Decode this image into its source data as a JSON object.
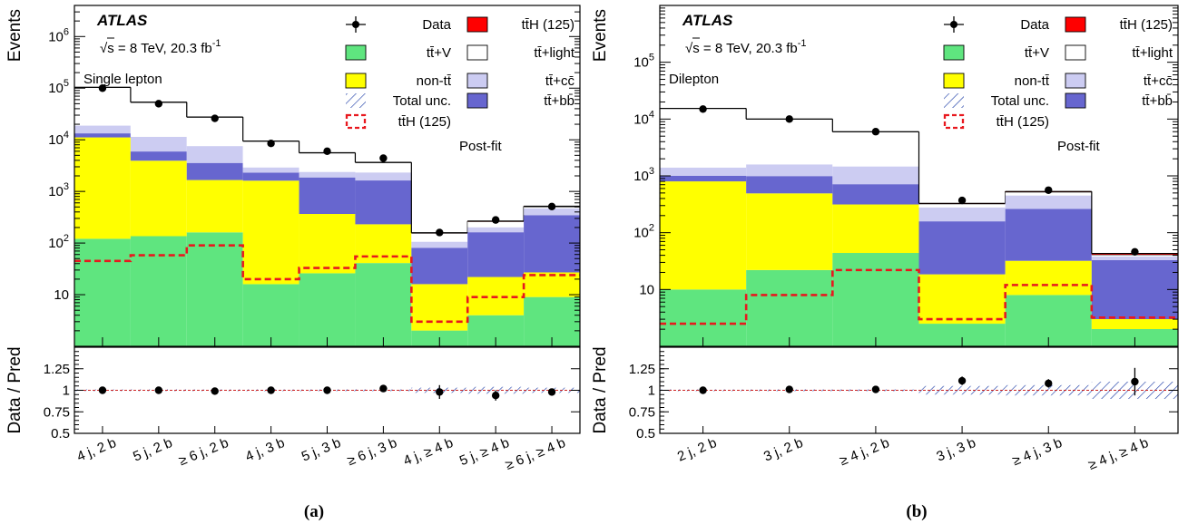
{
  "chart_data": [
    {
      "type": "bar",
      "stacked": true,
      "yscale": "log",
      "ylim": [
        1,
        4000000
      ],
      "ylabel": "Events",
      "ratio_ylabel": "Data / Pred",
      "ratio_ylim": [
        0.5,
        1.5
      ],
      "ratio_ticks": [
        "0.5",
        "0.75",
        "1",
        "1.25"
      ],
      "subfig_label": "(a)",
      "experiment": "ATLAS",
      "energy_label": "√s = 8 TeV,  20.3 fb",
      "lumi_exponent": "-1",
      "channel": "Single lepton",
      "fit_label": "Post-fit",
      "categories": [
        "4 j, 2 b",
        "5 j, 2 b",
        "≥ 6 j, 2 b",
        "4 j, 3 b",
        "5 j, 3 b",
        "≥ 6 j, 3 b",
        "4 j, ≥ 4 b",
        "5 j, ≥ 4 b",
        "≥ 6 j, ≥ 4 b"
      ],
      "series": [
        {
          "name": "tt̄+V",
          "color": "#5fe57f",
          "values": [
            120,
            135,
            160,
            15,
            25,
            40,
            1.02,
            3,
            8
          ]
        },
        {
          "name": "non-tt̄",
          "color": "#ffff00",
          "values": [
            11000,
            3800,
            1500,
            1600,
            340,
            190,
            14,
            18,
            18
          ]
        },
        {
          "name": "tt̄+bb̄",
          "color": "#6766cf",
          "values": [
            2200,
            2000,
            1900,
            700,
            1500,
            1400,
            65,
            140,
            320
          ]
        },
        {
          "name": "tt̄+cc̄",
          "color": "#ccccf2",
          "values": [
            5500,
            5500,
            4000,
            600,
            520,
            700,
            25,
            40,
            120
          ]
        },
        {
          "name": "tt̄+light",
          "color": "#ffffff",
          "values": [
            85000,
            42000,
            20000,
            6500,
            3200,
            1300,
            50,
            60,
            40
          ]
        },
        {
          "name": "tt̄H (125)",
          "color": "#ff0000",
          "values": [
            20,
            20,
            30,
            10,
            15,
            20,
            2,
            5,
            10
          ]
        }
      ],
      "signal_overlay": {
        "name": "tt̄H (125)",
        "color": "#e8181e",
        "values": [
          45,
          58,
          90,
          20,
          33,
          55,
          3,
          9,
          24
        ]
      },
      "data": [
        100000,
        50000,
        26000,
        8500,
        6000,
        4400,
        160,
        280,
        510
      ],
      "ratio": [
        1.0,
        1.0,
        0.99,
        1.0,
        1.0,
        1.02,
        0.98,
        0.94,
        0.98
      ],
      "ratio_err": [
        0.01,
        0.01,
        0.01,
        0.02,
        0.02,
        0.02,
        0.08,
        0.06,
        0.04
      ],
      "total_unc": [
        0.01,
        0.01,
        0.01,
        0.01,
        0.01,
        0.01,
        0.03,
        0.04,
        0.03
      ],
      "legend": [
        {
          "name": "Data",
          "kind": "data"
        },
        {
          "name": "tt̄H (125)",
          "kind": "fill",
          "color": "#ff0000"
        },
        {
          "name": "tt̄+V",
          "kind": "fill",
          "color": "#5fe57f"
        },
        {
          "name": "tt̄+light",
          "kind": "fill",
          "color": "#ffffff"
        },
        {
          "name": "non-tt̄",
          "kind": "fill",
          "color": "#ffff00"
        },
        {
          "name": "tt̄+cc̄",
          "kind": "fill",
          "color": "#ccccf2"
        },
        {
          "name": "Total unc.",
          "kind": "hatch"
        },
        {
          "name": "tt̄+bb̄",
          "kind": "fill",
          "color": "#6766cf"
        },
        {
          "name": "tt̄H (125)",
          "kind": "dash"
        }
      ]
    },
    {
      "type": "bar",
      "stacked": true,
      "yscale": "log",
      "ylim": [
        1,
        1000000
      ],
      "ylabel": "Events",
      "ratio_ylabel": "Data / Pred",
      "ratio_ylim": [
        0.5,
        1.5
      ],
      "ratio_ticks": [
        "0.5",
        "0.75",
        "1",
        "1.25"
      ],
      "subfig_label": "(b)",
      "experiment": "ATLAS",
      "energy_label": "√s = 8 TeV,  20.3 fb",
      "lumi_exponent": "-1",
      "channel": "Dilepton",
      "fit_label": "Post-fit",
      "categories": [
        "2 j, 2 b",
        "3 j, 2 b",
        "≥ 4 j, 2 b",
        "3 j, 3 b",
        "≥ 4 j, 3 b",
        "≥ 4 j, ≥ 4 b"
      ],
      "series": [
        {
          "name": "tt̄+V",
          "color": "#5fe57f",
          "values": [
            9,
            21,
            43,
            1.5,
            7,
            1.01
          ]
        },
        {
          "name": "non-tt̄",
          "color": "#ffff00",
          "values": [
            790,
            470,
            270,
            16,
            24,
            1.0
          ]
        },
        {
          "name": "tt̄+bb̄",
          "color": "#6766cf",
          "values": [
            200,
            500,
            400,
            140,
            230,
            30
          ]
        },
        {
          "name": "tt̄+cc̄",
          "color": "#ccccf2",
          "values": [
            400,
            600,
            750,
            120,
            190,
            5
          ]
        },
        {
          "name": "tt̄+light",
          "color": "#ffffff",
          "values": [
            14000,
            8400,
            4500,
            45,
            70,
            3
          ]
        },
        {
          "name": "tt̄H (125)",
          "color": "#ff0000",
          "values": [
            5,
            10,
            20,
            5,
            10,
            2
          ]
        }
      ],
      "signal_overlay": {
        "name": "tt̄H (125)",
        "color": "#e8181e",
        "values": [
          2.5,
          8,
          22,
          3,
          12,
          3.2
        ]
      },
      "data": [
        15000,
        10000,
        6000,
        370,
        560,
        46
      ],
      "ratio": [
        1.0,
        1.01,
        1.01,
        1.11,
        1.08,
        1.1
      ],
      "ratio_err": [
        0.01,
        0.01,
        0.02,
        0.05,
        0.05,
        0.16
      ],
      "total_unc": [
        0.01,
        0.01,
        0.01,
        0.05,
        0.06,
        0.1
      ],
      "legend": [
        {
          "name": "Data",
          "kind": "data"
        },
        {
          "name": "tt̄H (125)",
          "kind": "fill",
          "color": "#ff0000"
        },
        {
          "name": "tt̄+V",
          "kind": "fill",
          "color": "#5fe57f"
        },
        {
          "name": "tt̄+light",
          "kind": "fill",
          "color": "#ffffff"
        },
        {
          "name": "non-tt̄",
          "kind": "fill",
          "color": "#ffff00"
        },
        {
          "name": "tt̄+cc̄",
          "kind": "fill",
          "color": "#ccccf2"
        },
        {
          "name": "Total unc.",
          "kind": "hatch"
        },
        {
          "name": "tt̄+bb̄",
          "kind": "fill",
          "color": "#6766cf"
        },
        {
          "name": "tt̄H (125)",
          "kind": "dash"
        }
      ]
    }
  ]
}
